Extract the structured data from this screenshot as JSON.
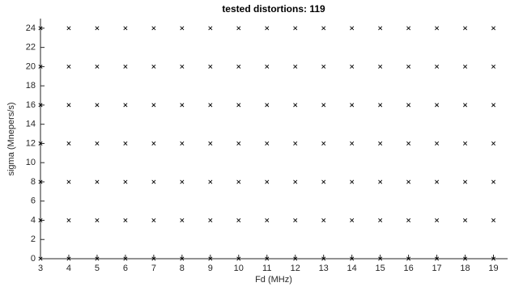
{
  "chart_data": {
    "type": "scatter",
    "title": "tested distortions: 119",
    "xlabel": "Fd (MHz)",
    "ylabel": "sigma (Mnepers/s)",
    "color": "#000000",
    "x": [
      3,
      3,
      3,
      3,
      3,
      3,
      3,
      4,
      4,
      4,
      4,
      4,
      4,
      4,
      5,
      5,
      5,
      5,
      5,
      5,
      5,
      6,
      6,
      6,
      6,
      6,
      6,
      6,
      7,
      7,
      7,
      7,
      7,
      7,
      7,
      8,
      8,
      8,
      8,
      8,
      8,
      8,
      9,
      9,
      9,
      9,
      9,
      9,
      9,
      10,
      10,
      10,
      10,
      10,
      10,
      10,
      11,
      11,
      11,
      11,
      11,
      11,
      11,
      12,
      12,
      12,
      12,
      12,
      12,
      12,
      13,
      13,
      13,
      13,
      13,
      13,
      13,
      14,
      14,
      14,
      14,
      14,
      14,
      14,
      15,
      15,
      15,
      15,
      15,
      15,
      15,
      16,
      16,
      16,
      16,
      16,
      16,
      16,
      17,
      17,
      17,
      17,
      17,
      17,
      17,
      18,
      18,
      18,
      18,
      18,
      18,
      18,
      19,
      19,
      19,
      19,
      19,
      19,
      19
    ],
    "y": [
      0,
      4,
      8,
      12,
      16,
      20,
      24,
      0,
      4,
      8,
      12,
      16,
      20,
      24,
      0,
      4,
      8,
      12,
      16,
      20,
      24,
      0,
      4,
      8,
      12,
      16,
      20,
      24,
      0,
      4,
      8,
      12,
      16,
      20,
      24,
      0,
      4,
      8,
      12,
      16,
      20,
      24,
      0,
      4,
      8,
      12,
      16,
      20,
      24,
      0,
      4,
      8,
      12,
      16,
      20,
      24,
      0,
      4,
      8,
      12,
      16,
      20,
      24,
      0,
      4,
      8,
      12,
      16,
      20,
      24,
      0,
      4,
      8,
      12,
      16,
      20,
      24,
      0,
      4,
      8,
      12,
      16,
      20,
      24,
      0,
      4,
      8,
      12,
      16,
      20,
      24,
      0,
      4,
      8,
      12,
      16,
      20,
      24,
      0,
      4,
      8,
      12,
      16,
      20,
      24,
      0,
      4,
      8,
      12,
      16,
      20,
      24,
      0,
      4,
      8,
      12,
      16,
      20,
      24
    ],
    "xlim": [
      3,
      19.5
    ],
    "ylim": [
      0,
      25
    ],
    "xticks": [
      3,
      4,
      5,
      6,
      7,
      8,
      9,
      10,
      11,
      12,
      13,
      14,
      15,
      16,
      17,
      18,
      19
    ],
    "yticks": [
      0,
      2,
      4,
      6,
      8,
      10,
      12,
      14,
      16,
      18,
      20,
      22,
      24
    ]
  }
}
